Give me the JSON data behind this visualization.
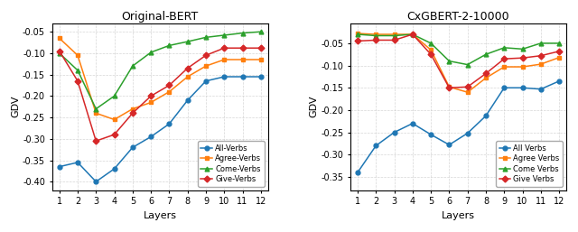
{
  "left": {
    "title": "Original-BERT",
    "xlabel": "Layers",
    "ylabel": "GDV",
    "layers": [
      1,
      2,
      3,
      4,
      5,
      6,
      7,
      8,
      9,
      10,
      11,
      12
    ],
    "series": {
      "All-Verbs": [
        -0.365,
        -0.355,
        -0.4,
        -0.37,
        -0.32,
        -0.295,
        -0.265,
        -0.21,
        -0.165,
        -0.155,
        -0.155,
        -0.155
      ],
      "Agree-Verbs": [
        -0.065,
        -0.105,
        -0.24,
        -0.255,
        -0.23,
        -0.215,
        -0.19,
        -0.155,
        -0.13,
        -0.115,
        -0.115,
        -0.115
      ],
      "Come-Verbs": [
        -0.1,
        -0.14,
        -0.23,
        -0.2,
        -0.13,
        -0.098,
        -0.082,
        -0.073,
        -0.063,
        -0.058,
        -0.053,
        -0.05
      ],
      "Give-Verbs": [
        -0.095,
        -0.165,
        -0.305,
        -0.29,
        -0.24,
        -0.2,
        -0.175,
        -0.135,
        -0.105,
        -0.088,
        -0.088,
        -0.088
      ]
    },
    "markers": {
      "All-Verbs": "o",
      "Agree-Verbs": "s",
      "Come-Verbs": "^",
      "Give-Verbs": "D"
    },
    "colors": {
      "All-Verbs": "#1f77b4",
      "Agree-Verbs": "#ff7f0e",
      "Come-Verbs": "#2ca02c",
      "Give-Verbs": "#d62728"
    },
    "ylim": [
      -0.42,
      -0.03
    ],
    "yticks": [
      -0.05,
      -0.1,
      -0.15,
      -0.2,
      -0.25,
      -0.3,
      -0.35,
      -0.4
    ]
  },
  "right": {
    "title": "CxGBERT-2-10000",
    "xlabel": "Layers",
    "ylabel": "GDV",
    "layers": [
      1,
      2,
      3,
      4,
      5,
      6,
      7,
      8,
      9,
      10,
      11,
      12
    ],
    "series": {
      "All Verbs": [
        -0.34,
        -0.28,
        -0.25,
        -0.23,
        -0.255,
        -0.278,
        -0.252,
        -0.213,
        -0.15,
        -0.15,
        -0.153,
        -0.135
      ],
      "Agree Verbs": [
        -0.028,
        -0.03,
        -0.03,
        -0.03,
        -0.065,
        -0.148,
        -0.16,
        -0.128,
        -0.103,
        -0.103,
        -0.097,
        -0.082
      ],
      "Come Verbs": [
        -0.03,
        -0.033,
        -0.033,
        -0.03,
        -0.05,
        -0.09,
        -0.098,
        -0.075,
        -0.06,
        -0.063,
        -0.05,
        -0.05
      ],
      "Give Verbs": [
        -0.045,
        -0.043,
        -0.043,
        -0.03,
        -0.075,
        -0.15,
        -0.148,
        -0.118,
        -0.085,
        -0.083,
        -0.078,
        -0.068
      ]
    },
    "markers": {
      "All Verbs": "o",
      "Agree Verbs": "s",
      "Come Verbs": "^",
      "Give Verbs": "D"
    },
    "colors": {
      "All Verbs": "#1f77b4",
      "Agree Verbs": "#ff7f0e",
      "Come Verbs": "#2ca02c",
      "Give Verbs": "#d62728"
    },
    "ylim": [
      -0.38,
      -0.005
    ],
    "yticks": [
      -0.05,
      -0.1,
      -0.15,
      -0.2,
      -0.25,
      -0.3,
      -0.35
    ]
  }
}
